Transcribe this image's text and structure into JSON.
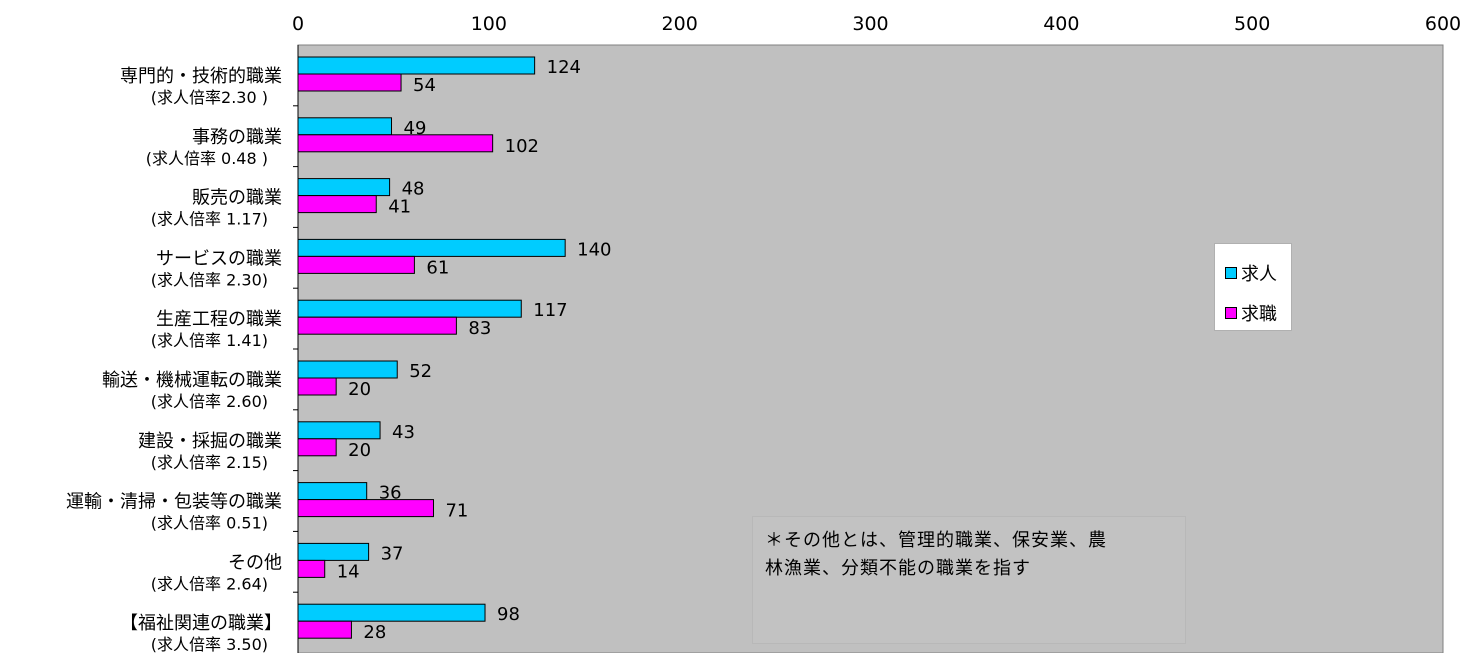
{
  "chart_data": {
    "type": "bar",
    "orientation": "horizontal",
    "xlim": [
      0,
      600
    ],
    "x_ticks": [
      "0",
      "100",
      "200",
      "300",
      "400",
      "500",
      "600"
    ],
    "categories": [
      {
        "name": "専門的・技術的職業",
        "ratio": "(求人倍率2.30 )"
      },
      {
        "name": "事務の職業",
        "ratio": "(求人倍率 0.48 )"
      },
      {
        "name": "販売の職業",
        "ratio": "(求人倍率 1.17)"
      },
      {
        "name": "サービスの職業",
        "ratio": "(求人倍率 2.30)"
      },
      {
        "name": "生産工程の職業",
        "ratio": "(求人倍率 1.41)"
      },
      {
        "name": "輸送・機械運転の職業",
        "ratio": "(求人倍率 2.60)"
      },
      {
        "name": "建設・採掘の職業",
        "ratio": "(求人倍率 2.15)"
      },
      {
        "name": "運輸・清掃・包装等の職業",
        "ratio": "(求人倍率 0.51)"
      },
      {
        "name": "その他",
        "ratio": "(求人倍率 2.64)"
      },
      {
        "name": "【福祉関連の職業】",
        "ratio": "(求人倍率 3.50)"
      }
    ],
    "series": [
      {
        "name": "求人",
        "color": "#00ccff",
        "values": [
          124,
          49,
          48,
          140,
          117,
          52,
          43,
          36,
          37,
          98
        ]
      },
      {
        "name": "求職",
        "color": "#ff00ff",
        "values": [
          54,
          102,
          41,
          61,
          83,
          20,
          20,
          71,
          14,
          28
        ]
      }
    ],
    "legend_position": "right",
    "grid": false,
    "plot_background": "#c0c0c0",
    "note": [
      "＊その他とは、管理的職業、保安業、農",
      "林漁業、分類不能の職業を指す"
    ]
  }
}
